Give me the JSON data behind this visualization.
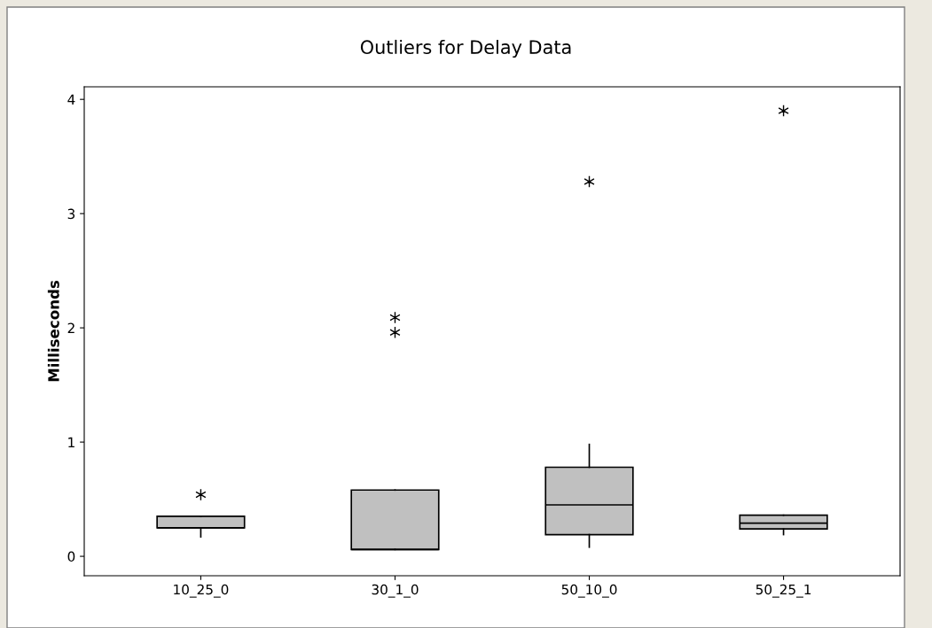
{
  "chart_data": {
    "type": "box",
    "title": "Outliers for Delay Data",
    "ylabel": "Milliseconds",
    "categories": [
      "10_25_0",
      "30_1_0",
      "50_10_0",
      "50_25_1"
    ],
    "color": "#c0c0c0",
    "boxes": [
      {
        "low": 0.17,
        "q1": 0.25,
        "median": 0.25,
        "q3": 0.35,
        "high": 0.35,
        "outliers": [
          0.54
        ]
      },
      {
        "low": 0.06,
        "q1": 0.06,
        "median": 0.06,
        "q3": 0.58,
        "high": 0.58,
        "outliers": [
          1.96,
          2.09
        ]
      },
      {
        "low": 0.08,
        "q1": 0.19,
        "median": 0.45,
        "q3": 0.78,
        "high": 0.98,
        "outliers": [
          3.28
        ]
      },
      {
        "low": 0.19,
        "q1": 0.24,
        "median": 0.29,
        "q3": 0.36,
        "high": 0.36,
        "outliers": [
          3.9
        ]
      }
    ],
    "ylim": [
      -0.17,
      4.11
    ],
    "yticks": [
      0,
      1,
      2,
      3,
      4
    ],
    "grid": false,
    "marker": "star"
  }
}
